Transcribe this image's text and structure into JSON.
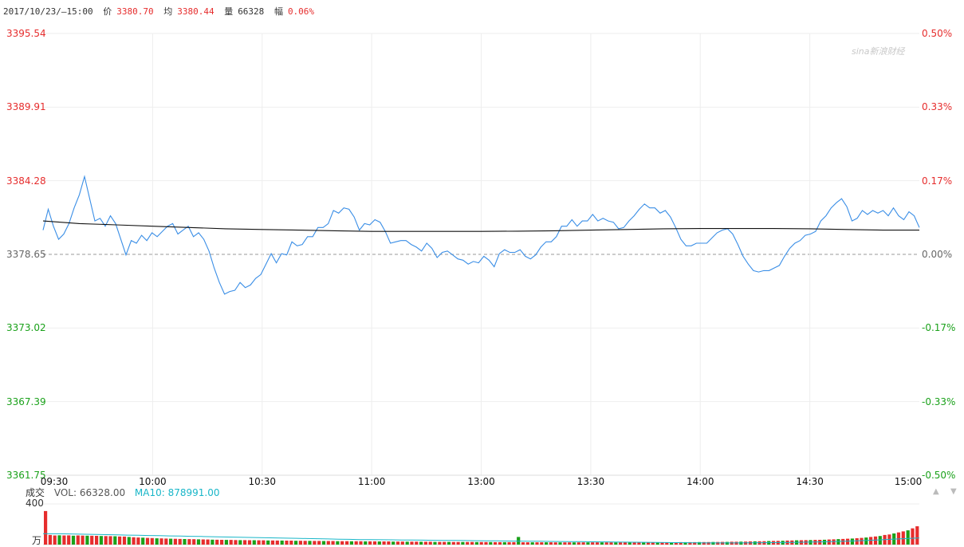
{
  "header": {
    "datetime": "2017/10/23/—15:00",
    "price_label": "价",
    "price": "3380.70",
    "avg_label": "均",
    "avg": "3380.44",
    "vol_label": "量",
    "vol": "66328",
    "change_label": "幅",
    "change": "0.06%"
  },
  "watermark": "sina新浪财经",
  "volume_header": {
    "title": "成交",
    "vol": "VOL: 66328.00",
    "ma10": "MA10: 878991.00",
    "max_label": "400",
    "unit_label": "万"
  },
  "colors": {
    "price_line": "#3a8ee6",
    "avg_line": "#111111",
    "up": "#e62d2d",
    "down": "#1aa11a",
    "base": "#666666",
    "grid": "#eeeeee",
    "ma10": "#19b6c8"
  },
  "chart_data": {
    "type": "line",
    "title": "",
    "y_ticks": [
      "3395.54",
      "3389.91",
      "3384.28",
      "3378.65",
      "3373.02",
      "3367.39",
      "3361.75"
    ],
    "pct_ticks": [
      "0.50%",
      "0.33%",
      "0.17%",
      "0.00%",
      "-0.17%",
      "-0.33%",
      "-0.50%"
    ],
    "x_ticks": [
      "09:30",
      "10:00",
      "10:30",
      "11:00",
      "13:00",
      "13:30",
      "14:00",
      "14:30",
      "15:00"
    ],
    "ylim": [
      3361.75,
      3395.54
    ],
    "prev_close": 3378.65,
    "grid": true,
    "series": [
      {
        "key": "price",
        "values": [
          3380.5,
          3382.1,
          3380.8,
          3379.8,
          3380.2,
          3381.0,
          3382.2,
          3383.2,
          3384.6,
          3382.9,
          3381.2,
          3381.4,
          3380.8,
          3381.6,
          3381.0,
          3379.8,
          3378.6,
          3379.7,
          3379.5,
          3380.1,
          3379.7,
          3380.3,
          3380.0,
          3380.4,
          3380.8,
          3381.0,
          3380.2,
          3380.5,
          3380.8,
          3380.0,
          3380.3,
          3379.8,
          3378.9,
          3377.6,
          3376.5,
          3375.6,
          3375.8,
          3375.9,
          3376.5,
          3376.1,
          3376.3,
          3376.8,
          3377.1,
          3377.9,
          3378.7,
          3378.0,
          3378.7,
          3378.6,
          3379.6,
          3379.3,
          3379.4,
          3380.0,
          3380.0,
          3380.7,
          3380.7,
          3381.0,
          3382.0,
          3381.8,
          3382.2,
          3382.1,
          3381.5,
          3380.5,
          3381.0,
          3380.9,
          3381.3,
          3381.1,
          3380.4,
          3379.5,
          3379.6,
          3379.7,
          3379.7,
          3379.4,
          3379.2,
          3378.9,
          3379.5,
          3379.1,
          3378.4,
          3378.8,
          3378.9,
          3378.6,
          3378.3,
          3378.2,
          3377.9,
          3378.1,
          3378.0,
          3378.5,
          3378.2,
          3377.7,
          3378.7,
          3379.0,
          3378.8,
          3378.8,
          3379.0,
          3378.5,
          3378.3,
          3378.6,
          3379.2,
          3379.6,
          3379.6,
          3380.0,
          3380.8,
          3380.8,
          3381.3,
          3380.8,
          3381.2,
          3381.2,
          3381.7,
          3381.2,
          3381.4,
          3381.2,
          3381.1,
          3380.6,
          3380.7,
          3381.2,
          3381.6,
          3382.1,
          3382.5,
          3382.2,
          3382.2,
          3381.8,
          3382.0,
          3381.5,
          3380.7,
          3379.8,
          3379.3,
          3379.3,
          3379.5,
          3379.5,
          3379.5,
          3379.9,
          3380.3,
          3380.5,
          3380.6,
          3380.2,
          3379.4,
          3378.5,
          3377.9,
          3377.4,
          3377.3,
          3377.4,
          3377.4,
          3377.6,
          3377.8,
          3378.5,
          3379.1,
          3379.5,
          3379.7,
          3380.1,
          3380.2,
          3380.4,
          3381.2,
          3381.6,
          3382.2,
          3382.6,
          3382.9,
          3382.3,
          3381.2,
          3381.4,
          3382.0,
          3381.7,
          3382.0,
          3381.8,
          3382.0,
          3381.6,
          3382.2,
          3381.6,
          3381.3,
          3381.9,
          3381.6,
          3380.7
        ]
      },
      {
        "key": "avg",
        "values": [
          3381.2,
          3381.0,
          3380.9,
          3380.8,
          3380.7,
          3380.6,
          3380.55,
          3380.5,
          3380.45,
          3380.4,
          3380.4,
          3380.4,
          3380.4,
          3380.42,
          3380.45,
          3380.5,
          3380.55,
          3380.6,
          3380.62,
          3380.62,
          3380.62,
          3380.6,
          3380.55,
          3380.5,
          3380.5
        ]
      }
    ]
  },
  "volume_data": {
    "values": [
      330,
      95,
      90,
      92,
      90,
      91,
      88,
      90,
      89,
      88,
      87,
      86,
      85,
      84,
      83,
      82,
      80,
      79,
      75,
      72,
      70,
      68,
      66,
      64,
      62,
      61,
      60,
      58,
      57,
      56,
      55,
      54,
      53,
      52,
      51,
      50,
      49,
      48,
      47,
      46,
      46,
      45,
      44,
      44,
      43,
      43,
      42,
      42,
      41,
      41,
      40,
      40,
      39,
      39,
      38,
      38,
      37,
      37,
      36,
      36,
      35,
      35,
      35,
      34,
      34,
      34,
      33,
      33,
      33,
      32,
      32,
      32,
      31,
      31,
      31,
      30,
      30,
      30,
      29,
      29,
      29,
      28,
      28,
      28,
      27,
      27,
      27,
      27,
      26,
      26,
      26,
      26,
      26,
      25,
      25,
      25,
      25,
      24,
      24,
      24,
      24,
      24,
      24,
      23,
      23,
      23,
      23,
      23,
      23,
      23,
      22,
      22,
      22,
      22,
      22,
      22,
      22,
      22,
      22,
      22,
      22,
      22,
      22,
      22,
      22,
      22,
      22,
      22,
      22,
      22,
      22,
      23,
      23,
      23,
      23,
      23,
      23,
      24,
      24,
      24,
      24,
      25,
      25,
      25,
      26,
      26,
      27,
      27,
      28,
      28,
      29,
      30,
      31,
      32,
      33,
      34,
      35,
      36,
      37,
      38,
      40,
      41,
      42,
      43,
      44,
      45,
      46,
      47,
      48,
      50,
      52,
      54,
      56,
      58,
      60,
      63,
      66,
      70,
      75,
      80,
      85,
      95,
      100,
      110,
      120,
      130,
      140,
      160,
      180
    ],
    "spike_index": 102,
    "spike_value": 75,
    "ma10": [
      92,
      91,
      90,
      88,
      86,
      84,
      82,
      80,
      78,
      76,
      74,
      72,
      70,
      68,
      66,
      64,
      62,
      60,
      58,
      56,
      54,
      52,
      50,
      48,
      46,
      44,
      42,
      40,
      38,
      36,
      34,
      33,
      32,
      31,
      30,
      29,
      28,
      27,
      26,
      25,
      24,
      23,
      22,
      21,
      20,
      19,
      18,
      17,
      16,
      15,
      14,
      13,
      12,
      11,
      10,
      9,
      8,
      7,
      6,
      5,
      4,
      3,
      2,
      1,
      1,
      1,
      1,
      2,
      3,
      4,
      5,
      6,
      8,
      10,
      12,
      15,
      18,
      22,
      26,
      30,
      35,
      40,
      45,
      50
    ]
  },
  "volume_arrows": [
    "▲",
    "▼"
  ]
}
